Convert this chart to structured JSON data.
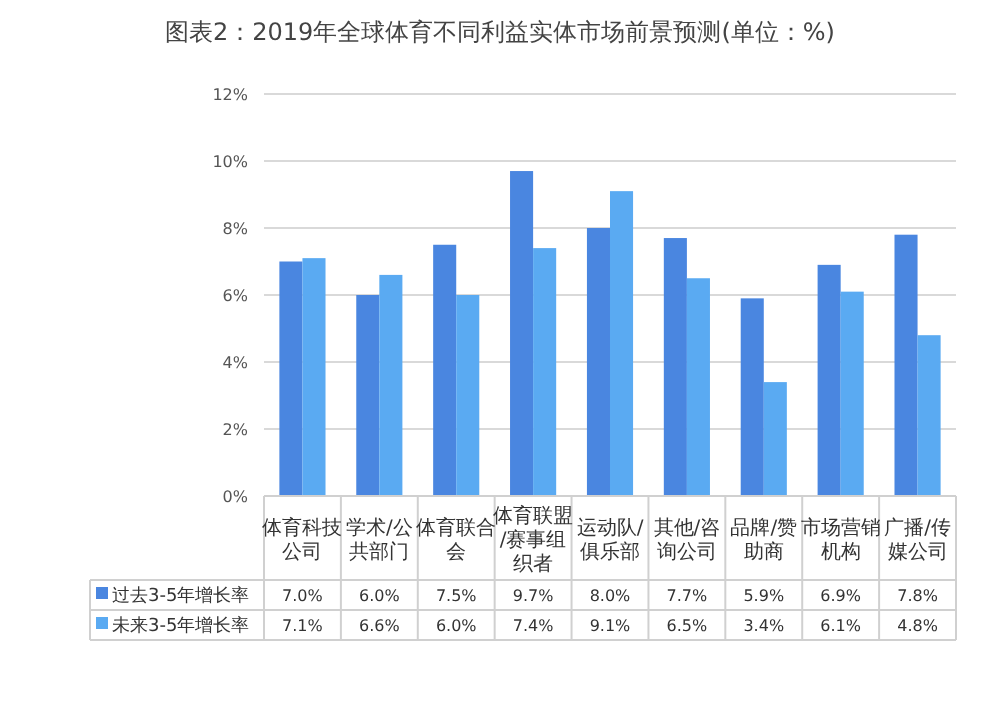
{
  "chart_data": {
    "type": "bar",
    "title": "图表2：2019年全球体育不同利益实体市场前景预测(单位：%)",
    "categories": [
      "体育科技公司",
      "学术/公共部门",
      "体育联合会",
      "体育联盟/赛事组织者",
      "运动队/俱乐部",
      "其他/咨询公司",
      "品牌/赞助商",
      "市场营销机构",
      "广播/传媒公司"
    ],
    "series": [
      {
        "name": "过去3-5年增长率",
        "color": "#4a86e0",
        "values": [
          7.0,
          6.0,
          7.5,
          9.7,
          8.0,
          7.7,
          5.9,
          6.9,
          7.8
        ],
        "value_labels": [
          "7.0%",
          "6.0%",
          "7.5%",
          "9.7%",
          "8.0%",
          "7.7%",
          "5.9%",
          "6.9%",
          "7.8%"
        ]
      },
      {
        "name": "未来3-5年增长率",
        "color": "#5aaaf2",
        "values": [
          7.1,
          6.6,
          6.0,
          7.4,
          9.1,
          6.5,
          3.4,
          6.1,
          4.8
        ],
        "value_labels": [
          "7.1%",
          "6.6%",
          "6.0%",
          "7.4%",
          "9.1%",
          "6.5%",
          "3.4%",
          "6.1%",
          "4.8%"
        ]
      }
    ],
    "ylim": [
      0,
      12
    ],
    "yticks": [
      {
        "value": 0,
        "label": "0%"
      },
      {
        "value": 2,
        "label": "2%"
      },
      {
        "value": 4,
        "label": "4%"
      },
      {
        "value": 6,
        "label": "6%"
      },
      {
        "value": 8,
        "label": "8%"
      },
      {
        "value": 10,
        "label": "10%"
      },
      {
        "value": 12,
        "label": "12%"
      }
    ],
    "grid": "y",
    "legend": "bottom"
  }
}
